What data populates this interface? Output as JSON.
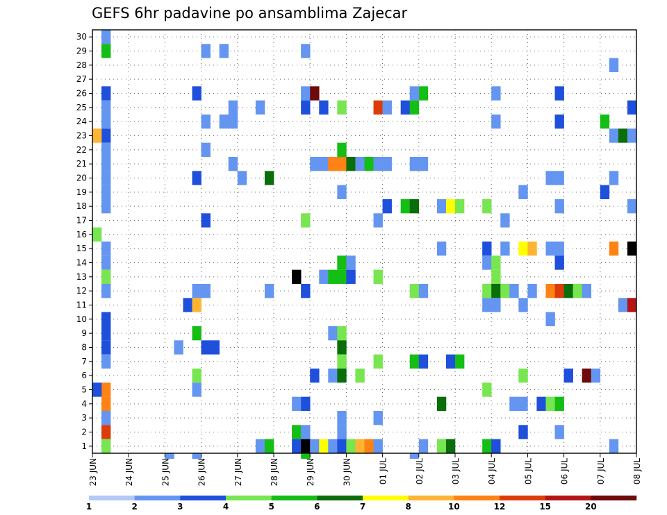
{
  "chart_data": {
    "type": "heatmap",
    "title": "GEFS 6hr padavine po ansamblima Zajecar",
    "xlabel": "",
    "ylabel": "",
    "x_tick_labels": [
      "23 JUN",
      "24 JUN",
      "25 JUN",
      "26 JUN",
      "27 JUN",
      "28 JUN",
      "29 JUN",
      "30 JUN",
      "01 JUL",
      "02 JUL",
      "03 JUL",
      "04 JUL",
      "05 JUL",
      "06 JUL",
      "07 JUL",
      "08 JUL"
    ],
    "y_tick_labels": [
      "1",
      "2",
      "3",
      "4",
      "5",
      "6",
      "7",
      "8",
      "9",
      "10",
      "11",
      "12",
      "13",
      "14",
      "15",
      "16",
      "17",
      "18",
      "19",
      "20",
      "21",
      "22",
      "23",
      "24",
      "25",
      "26",
      "27",
      "28",
      "29",
      "30"
    ],
    "xlim": [
      0,
      60
    ],
    "ylim": [
      0.5,
      30.5
    ],
    "grid": true,
    "colorbar": {
      "bounds": [
        1,
        2,
        3,
        4,
        5,
        6,
        7,
        8,
        10,
        12,
        15,
        20
      ],
      "labels": [
        "1",
        "2",
        "3",
        "4",
        "5",
        "6",
        "7",
        "8",
        "10",
        "12",
        "15",
        "20"
      ],
      "colors": [
        "#b4c8f5",
        "#6495f0",
        "#1e50dc",
        "#78e650",
        "#14be14",
        "#0a6e0a",
        "#ffff00",
        "#ffb432",
        "#ff8214",
        "#dc3c0a",
        "#b41414",
        "#6e0a0a"
      ]
    },
    "cells": [
      [
        1,
        30,
        1
      ],
      [
        1,
        29,
        4
      ],
      [
        1,
        24,
        1
      ],
      [
        1,
        23,
        2
      ],
      [
        1,
        22,
        1
      ],
      [
        1,
        21,
        1
      ],
      [
        1,
        20,
        1
      ],
      [
        1,
        19,
        1
      ],
      [
        1,
        18,
        1
      ],
      [
        1,
        15,
        1
      ],
      [
        1,
        14,
        1
      ],
      [
        1,
        13,
        3
      ],
      [
        1,
        12,
        1
      ],
      [
        1,
        10,
        2
      ],
      [
        1,
        9,
        2
      ],
      [
        1,
        8,
        2
      ],
      [
        1,
        7,
        1
      ],
      [
        1,
        5,
        8
      ],
      [
        1,
        4,
        8
      ],
      [
        1,
        3,
        1
      ],
      [
        1,
        2,
        9
      ],
      [
        1,
        1,
        3
      ],
      [
        1,
        26,
        2
      ],
      [
        1,
        25,
        1
      ],
      [
        0,
        23,
        7
      ],
      [
        0,
        16,
        3
      ],
      [
        0,
        5,
        2
      ],
      [
        12,
        29,
        1
      ],
      [
        14,
        29,
        1
      ],
      [
        23,
        29,
        1
      ],
      [
        44,
        24,
        1
      ],
      [
        57,
        28,
        1
      ],
      [
        11,
        26,
        2
      ],
      [
        23,
        26,
        1
      ],
      [
        24,
        26,
        11
      ],
      [
        36,
        26,
        4
      ],
      [
        35,
        26,
        1
      ],
      [
        44,
        26,
        1
      ],
      [
        51,
        26,
        2
      ],
      [
        8,
        0,
        1
      ],
      [
        11,
        0,
        1
      ],
      [
        35,
        0,
        1
      ],
      [
        15,
        25,
        1
      ],
      [
        18,
        25,
        1
      ],
      [
        23,
        25,
        2
      ],
      [
        25,
        25,
        2
      ],
      [
        27,
        25,
        3
      ],
      [
        31,
        25,
        9
      ],
      [
        32,
        25,
        1
      ],
      [
        34,
        25,
        2
      ],
      [
        35,
        25,
        4
      ],
      [
        59,
        25,
        2
      ],
      [
        12,
        24,
        1
      ],
      [
        14,
        24,
        1
      ],
      [
        15,
        24,
        1
      ],
      [
        51,
        24,
        2
      ],
      [
        56,
        24,
        4
      ],
      [
        57,
        23,
        1
      ],
      [
        58,
        23,
        5
      ],
      [
        59,
        23,
        1
      ],
      [
        12,
        22,
        1
      ],
      [
        27,
        22,
        4
      ],
      [
        15,
        21,
        1
      ],
      [
        24,
        21,
        1
      ],
      [
        25,
        21,
        1
      ],
      [
        26,
        21,
        8
      ],
      [
        27,
        21,
        8
      ],
      [
        28,
        21,
        5
      ],
      [
        29,
        21,
        1
      ],
      [
        30,
        21,
        4
      ],
      [
        31,
        21,
        1
      ],
      [
        32,
        21,
        1
      ],
      [
        35,
        21,
        1
      ],
      [
        36,
        21,
        1
      ],
      [
        11,
        20,
        2
      ],
      [
        16,
        20,
        1
      ],
      [
        19,
        20,
        5
      ],
      [
        50,
        20,
        1
      ],
      [
        51,
        20,
        1
      ],
      [
        57,
        20,
        1
      ],
      [
        27,
        19,
        1
      ],
      [
        47,
        19,
        1
      ],
      [
        56,
        19,
        2
      ],
      [
        32,
        18,
        2
      ],
      [
        34,
        18,
        4
      ],
      [
        35,
        18,
        5
      ],
      [
        38,
        18,
        1
      ],
      [
        39,
        18,
        6
      ],
      [
        40,
        18,
        3
      ],
      [
        43,
        18,
        3
      ],
      [
        51,
        18,
        1
      ],
      [
        59,
        18,
        1
      ],
      [
        12,
        17,
        2
      ],
      [
        23,
        17,
        3
      ],
      [
        31,
        17,
        1
      ],
      [
        45,
        17,
        1
      ],
      [
        38,
        15,
        1
      ],
      [
        43,
        15,
        2
      ],
      [
        45,
        15,
        1
      ],
      [
        47,
        15,
        6
      ],
      [
        48,
        15,
        7
      ],
      [
        50,
        15,
        1
      ],
      [
        51,
        15,
        1
      ],
      [
        57,
        15,
        8
      ],
      [
        59,
        15,
        12
      ],
      [
        27,
        14,
        4
      ],
      [
        28,
        14,
        1
      ],
      [
        43,
        14,
        1
      ],
      [
        44,
        14,
        3
      ],
      [
        51,
        14,
        2
      ],
      [
        22,
        13,
        12
      ],
      [
        25,
        13,
        1
      ],
      [
        26,
        13,
        4
      ],
      [
        27,
        13,
        4
      ],
      [
        28,
        13,
        2
      ],
      [
        31,
        13,
        3
      ],
      [
        44,
        13,
        3
      ],
      [
        11,
        12,
        1
      ],
      [
        12,
        12,
        1
      ],
      [
        19,
        12,
        1
      ],
      [
        23,
        12,
        2
      ],
      [
        35,
        12,
        3
      ],
      [
        36,
        12,
        1
      ],
      [
        43,
        12,
        3
      ],
      [
        44,
        12,
        5
      ],
      [
        45,
        12,
        3
      ],
      [
        46,
        12,
        1
      ],
      [
        48,
        12,
        1
      ],
      [
        50,
        12,
        8
      ],
      [
        51,
        12,
        9
      ],
      [
        52,
        12,
        5
      ],
      [
        53,
        12,
        3
      ],
      [
        54,
        12,
        1
      ],
      [
        10,
        11,
        2
      ],
      [
        11,
        11,
        7
      ],
      [
        43,
        11,
        1
      ],
      [
        44,
        11,
        1
      ],
      [
        47,
        11,
        1
      ],
      [
        58,
        11,
        1
      ],
      [
        59,
        11,
        10
      ],
      [
        50,
        10,
        1
      ],
      [
        11,
        9,
        4
      ],
      [
        26,
        9,
        1
      ],
      [
        27,
        9,
        3
      ],
      [
        9,
        8,
        1
      ],
      [
        12,
        8,
        2
      ],
      [
        13,
        8,
        2
      ],
      [
        27,
        8,
        5
      ],
      [
        27,
        7,
        3
      ],
      [
        31,
        7,
        3
      ],
      [
        35,
        7,
        4
      ],
      [
        36,
        7,
        2
      ],
      [
        39,
        7,
        2
      ],
      [
        40,
        7,
        4
      ],
      [
        11,
        6,
        3
      ],
      [
        24,
        6,
        2
      ],
      [
        26,
        6,
        1
      ],
      [
        27,
        6,
        5
      ],
      [
        29,
        6,
        3
      ],
      [
        47,
        6,
        3
      ],
      [
        52,
        6,
        2
      ],
      [
        54,
        6,
        11
      ],
      [
        55,
        6,
        1
      ],
      [
        11,
        5,
        1
      ],
      [
        43,
        5,
        3
      ],
      [
        22,
        4,
        1
      ],
      [
        23,
        4,
        2
      ],
      [
        38,
        4,
        5
      ],
      [
        46,
        4,
        1
      ],
      [
        47,
        4,
        1
      ],
      [
        49,
        4,
        2
      ],
      [
        50,
        4,
        3
      ],
      [
        51,
        4,
        4
      ],
      [
        27,
        3,
        1
      ],
      [
        31,
        3,
        1
      ],
      [
        22,
        2,
        4
      ],
      [
        23,
        2,
        1
      ],
      [
        27,
        2,
        1
      ],
      [
        47,
        2,
        2
      ],
      [
        51,
        2,
        1
      ],
      [
        18,
        1,
        1
      ],
      [
        19,
        1,
        4
      ],
      [
        22,
        1,
        2
      ],
      [
        23,
        1,
        12
      ],
      [
        24,
        1,
        1
      ],
      [
        25,
        1,
        6
      ],
      [
        26,
        1,
        1
      ],
      [
        27,
        1,
        2
      ],
      [
        28,
        1,
        3
      ],
      [
        29,
        1,
        7
      ],
      [
        30,
        1,
        8
      ],
      [
        31,
        1,
        1
      ],
      [
        36,
        1,
        1
      ],
      [
        38,
        1,
        3
      ],
      [
        39,
        1,
        5
      ],
      [
        43,
        1,
        4
      ],
      [
        44,
        1,
        2
      ],
      [
        57,
        1,
        1
      ],
      [
        11,
        0,
        1
      ],
      [
        23,
        0,
        4
      ]
    ]
  }
}
